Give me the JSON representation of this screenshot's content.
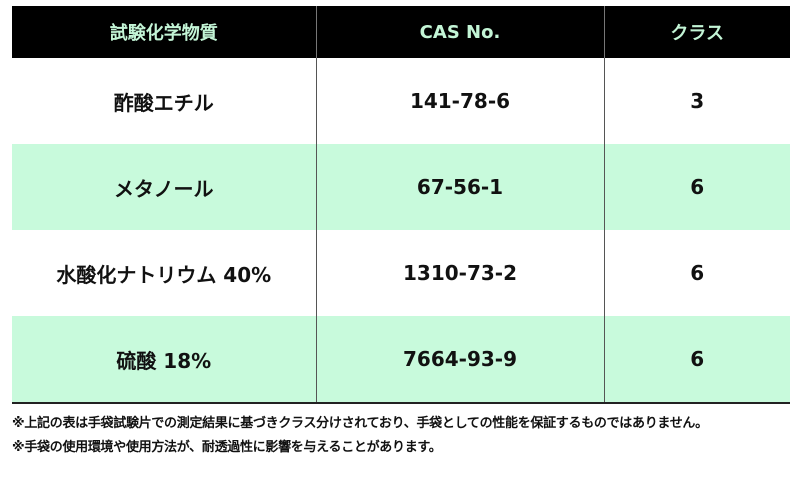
{
  "colors": {
    "header_bg": "#000000",
    "header_text": "#c3f5d6",
    "alt_row": "#c8fadc"
  },
  "table": {
    "headers": [
      "試験化学物質",
      "CAS No.",
      "クラス"
    ],
    "rows": [
      {
        "chemical": "酢酸エチル",
        "cas": "141-78-6",
        "class": "3"
      },
      {
        "chemical": "メタノール",
        "cas": "67-56-1",
        "class": "6"
      },
      {
        "chemical": "水酸化ナトリウム 40%",
        "cas": "1310-73-2",
        "class": "6"
      },
      {
        "chemical": "硫酸 18%",
        "cas": "7664-93-9",
        "class": "6"
      }
    ]
  },
  "notes": [
    "※上記の表は手袋試験片での測定結果に基づきクラス分けされており、手袋としての性能を保証するものではありません。",
    "※手袋の使用環境や使用方法が、耐透過性に影響を与えることがあります。"
  ]
}
